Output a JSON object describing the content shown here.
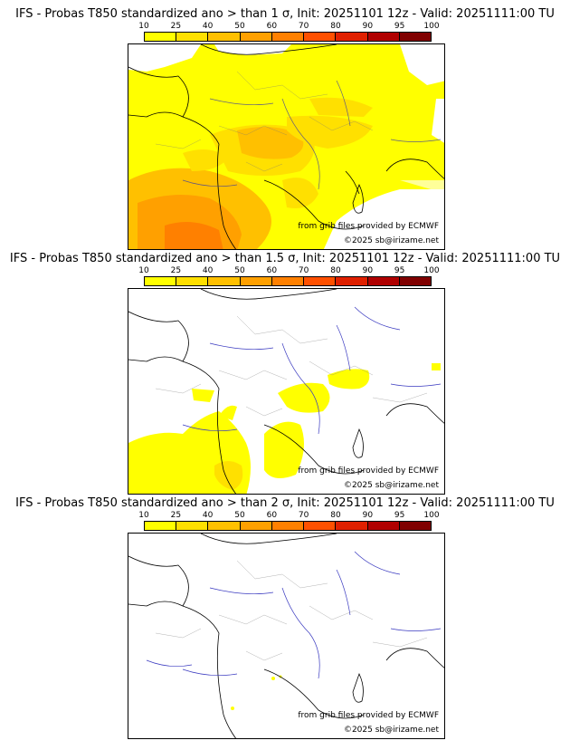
{
  "colorbar": {
    "ticks": [
      "10",
      "25",
      "40",
      "50",
      "60",
      "70",
      "80",
      "90",
      "95",
      "100"
    ],
    "colors": [
      "#ffff00",
      "#ffe000",
      "#ffc000",
      "#ffa000",
      "#ff8000",
      "#ff5000",
      "#e02000",
      "#b00000",
      "#800000"
    ]
  },
  "panels": [
    {
      "title": "IFS - Probas T850  standardized ano > than 1 σ, Init: 20251101 12z - Valid: 20251111:00 TU",
      "threshold_sigma": "1",
      "credit_source": "from grib files provided by ECMWF",
      "credit_copyright": "©2025 sb@irizame.net"
    },
    {
      "title": "IFS - Probas T850  standardized ano > than 1.5 σ, Init: 20251101 12z - Valid: 20251111:00 TU",
      "threshold_sigma": "1.5",
      "credit_source": "from grib files provided by ECMWF",
      "credit_copyright": "©2025 sb@irizame.net"
    },
    {
      "title": "IFS - Probas T850  standardized ano > than 2 σ, Init: 20251101 12z - Valid: 20251111:00 TU",
      "threshold_sigma": "2",
      "credit_source": "from grib files provided by ECMWF",
      "credit_copyright": "©2025 sb@irizame.net"
    }
  ]
}
